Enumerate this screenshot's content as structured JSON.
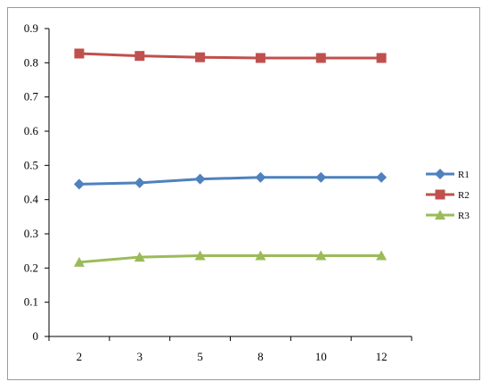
{
  "chart_data": {
    "type": "line",
    "categories": [
      "2",
      "3",
      "5",
      "8",
      "10",
      "12"
    ],
    "series": [
      {
        "name": "R1",
        "values": [
          0.445,
          0.449,
          0.46,
          0.465,
          0.465,
          0.465
        ],
        "color": "#4f81bd",
        "marker": "diamond"
      },
      {
        "name": "R2",
        "values": [
          0.827,
          0.82,
          0.816,
          0.814,
          0.814,
          0.814
        ],
        "color": "#c0504d",
        "marker": "square"
      },
      {
        "name": "R3",
        "values": [
          0.217,
          0.232,
          0.236,
          0.236,
          0.236,
          0.236
        ],
        "color": "#9bbb59",
        "marker": "triangle"
      }
    ],
    "y_ticks": [
      "0",
      "0.1",
      "0.2",
      "0.3",
      "0.4",
      "0.5",
      "0.6",
      "0.7",
      "0.8",
      "0.9"
    ],
    "ylim": [
      0,
      0.9
    ],
    "title": "",
    "xlabel": "",
    "ylabel": "",
    "grid": false,
    "legend_position": "right"
  }
}
